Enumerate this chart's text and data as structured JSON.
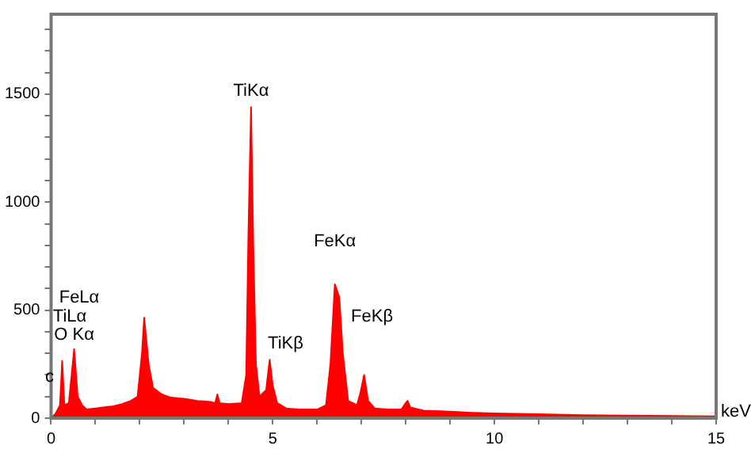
{
  "chart_data": {
    "type": "area",
    "xlabel": "keV",
    "x": [
      0,
      0.1,
      0.2,
      0.25,
      0.3,
      0.4,
      0.52,
      0.6,
      0.7,
      0.8,
      1.0,
      1.2,
      1.4,
      1.6,
      1.8,
      1.95,
      2.05,
      2.1,
      2.2,
      2.3,
      2.5,
      2.7,
      3.0,
      3.3,
      3.6,
      3.7,
      3.75,
      3.8,
      4.0,
      4.3,
      4.4,
      4.45,
      4.51,
      4.56,
      4.62,
      4.7,
      4.85,
      4.93,
      5.0,
      5.1,
      5.3,
      5.6,
      6.0,
      6.2,
      6.3,
      6.4,
      6.5,
      6.58,
      6.7,
      6.9,
      6.98,
      7.06,
      7.15,
      7.3,
      7.6,
      7.9,
      8.0,
      8.04,
      8.1,
      8.4,
      9.0,
      9.5,
      10,
      11,
      12,
      13,
      14,
      15
    ],
    "series": [
      {
        "color": "#ff0000",
        "values": [
          0,
          20,
          60,
          265,
          60,
          70,
          320,
          100,
          60,
          40,
          45,
          50,
          55,
          65,
          80,
          100,
          300,
          465,
          250,
          140,
          110,
          95,
          90,
          80,
          75,
          70,
          110,
          70,
          65,
          70,
          200,
          850,
          1440,
          800,
          250,
          100,
          130,
          270,
          150,
          70,
          45,
          40,
          40,
          60,
          250,
          620,
          560,
          300,
          80,
          60,
          120,
          200,
          80,
          45,
          40,
          40,
          70,
          80,
          50,
          35,
          30,
          25,
          22,
          18,
          14,
          12,
          10,
          8
        ]
      }
    ],
    "xlim": [
      0,
      15
    ],
    "xticks": [
      0,
      {
        "value": 1,
        "label": null
      },
      {
        "value": 2,
        "label": null
      },
      {
        "value": 3,
        "label": null
      },
      {
        "value": 4,
        "label": null
      },
      5,
      {
        "value": 6,
        "label": null
      },
      {
        "value": 7,
        "label": null
      },
      {
        "value": 8,
        "label": null
      },
      {
        "value": 9,
        "label": null
      },
      10,
      {
        "value": 11,
        "label": null
      },
      {
        "value": 12,
        "label": null
      },
      {
        "value": 13,
        "label": null
      },
      {
        "value": 14,
        "label": null
      },
      15
    ],
    "ylim": [
      0,
      1870
    ],
    "yticks": [
      0,
      {
        "value": 100,
        "label": null
      },
      {
        "value": 200,
        "label": null
      },
      {
        "value": 300,
        "label": null
      },
      {
        "value": 400,
        "label": null
      },
      500,
      {
        "value": 600,
        "label": null
      },
      {
        "value": 700,
        "label": null
      },
      {
        "value": 800,
        "label": null
      },
      {
        "value": 900,
        "label": null
      },
      1000,
      {
        "value": 1100,
        "label": null
      },
      {
        "value": 1200,
        "label": null
      },
      {
        "value": 1300,
        "label": null
      },
      {
        "value": 1400,
        "label": null
      },
      1500,
      {
        "value": 1600,
        "label": null
      },
      {
        "value": 1700,
        "label": null
      },
      {
        "value": 1800,
        "label": null
      }
    ],
    "grid": false,
    "legend": false,
    "annotations": [
      {
        "text": "TiKα",
        "x": 4.51,
        "y": 1440
      },
      {
        "text": "FeKα",
        "x": 6.4,
        "y": 620
      },
      {
        "text": "FeKβ",
        "x": 7.06,
        "y": 200
      },
      {
        "text": "TiKβ",
        "x": 4.93,
        "y": 270
      },
      "FeLα",
      "TiLα",
      {
        "text": "O Kα",
        "x": 0.52,
        "y": 320
      },
      {
        "text": "c",
        "x": 0.25,
        "y": 265
      }
    ]
  }
}
